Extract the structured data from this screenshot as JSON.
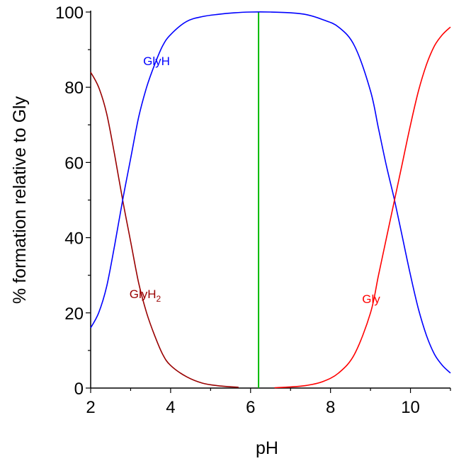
{
  "chart_data": {
    "type": "line",
    "xlabel": "pH",
    "ylabel": "% formation relative to Gly",
    "xlim": [
      2,
      11
    ],
    "ylim": [
      0,
      100
    ],
    "x_ticks": [
      "2",
      "4",
      "6",
      "8",
      "10"
    ],
    "y_ticks": [
      "0",
      "20",
      "40",
      "60",
      "80",
      "100"
    ],
    "grid": false,
    "legend": "none",
    "series": [
      {
        "key": "GlyH2",
        "label_base": "GlyH",
        "label_sub": "2",
        "color": "#990000",
        "points": [
          [
            2.0,
            84
          ],
          [
            2.2,
            80
          ],
          [
            2.4,
            73
          ],
          [
            2.6,
            62
          ],
          [
            2.8,
            50
          ],
          [
            3.0,
            39
          ],
          [
            3.2,
            28
          ],
          [
            3.4,
            20
          ],
          [
            3.6,
            14
          ],
          [
            3.8,
            9
          ],
          [
            4.0,
            6
          ],
          [
            4.4,
            3
          ],
          [
            4.8,
            1.3
          ],
          [
            5.2,
            0.6
          ],
          [
            5.7,
            0.2
          ]
        ]
      },
      {
        "key": "GlyH",
        "label_base": "GlyH",
        "label_sub": "",
        "color": "#0000ff",
        "points": [
          [
            2.0,
            16
          ],
          [
            2.2,
            20
          ],
          [
            2.4,
            27
          ],
          [
            2.6,
            38
          ],
          [
            2.8,
            50
          ],
          [
            3.0,
            61
          ],
          [
            3.2,
            72
          ],
          [
            3.4,
            80
          ],
          [
            3.6,
            86
          ],
          [
            3.8,
            91
          ],
          [
            4.0,
            94
          ],
          [
            4.4,
            97.5
          ],
          [
            4.8,
            98.8
          ],
          [
            5.2,
            99.4
          ],
          [
            5.6,
            99.8
          ],
          [
            6.0,
            100
          ],
          [
            6.5,
            100
          ],
          [
            7.0,
            99.8
          ],
          [
            7.4,
            99.3
          ],
          [
            7.8,
            98
          ],
          [
            8.2,
            96
          ],
          [
            8.6,
            91
          ],
          [
            9.0,
            79
          ],
          [
            9.2,
            69
          ],
          [
            9.4,
            59
          ],
          [
            9.6,
            50
          ],
          [
            9.8,
            40
          ],
          [
            10.0,
            30
          ],
          [
            10.2,
            21
          ],
          [
            10.4,
            14
          ],
          [
            10.6,
            9
          ],
          [
            10.8,
            6
          ],
          [
            11.0,
            4
          ]
        ]
      },
      {
        "key": "Gly",
        "label_base": "Gly",
        "label_sub": "",
        "color": "#ff0000",
        "points": [
          [
            6.6,
            0.1
          ],
          [
            7.0,
            0.3
          ],
          [
            7.4,
            0.7
          ],
          [
            7.8,
            1.7
          ],
          [
            8.2,
            4
          ],
          [
            8.6,
            9
          ],
          [
            9.0,
            20
          ],
          [
            9.2,
            30
          ],
          [
            9.4,
            40
          ],
          [
            9.6,
            50
          ],
          [
            9.8,
            60
          ],
          [
            10.0,
            70
          ],
          [
            10.2,
            79
          ],
          [
            10.4,
            86
          ],
          [
            10.6,
            91
          ],
          [
            10.8,
            94
          ],
          [
            11.0,
            96
          ]
        ]
      }
    ],
    "isoelectric_line": {
      "x": 6.2,
      "color": "#00bb00"
    }
  }
}
